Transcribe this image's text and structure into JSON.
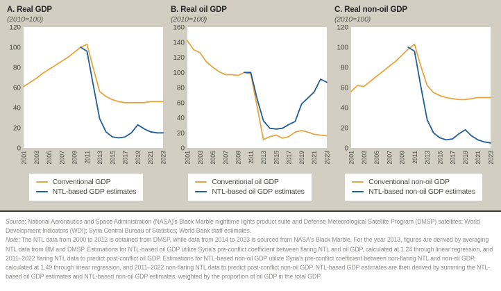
{
  "figure": {
    "colors": {
      "conventional": "#e8a43e",
      "ntl": "#1f5c99",
      "background": "#d2cfc2",
      "plot_bg": "#ffffff",
      "rule": "#3c3c34"
    },
    "panels": [
      {
        "title": "A. Real GDP",
        "subtitle": "(2010=100)",
        "legend": [
          {
            "label": "Conventional GDP",
            "color_key": "conventional"
          },
          {
            "label": "NTL-based GDP estimates",
            "color_key": "ntl"
          }
        ]
      },
      {
        "title": "B. Real oil GDP",
        "subtitle": "(2010=100)",
        "legend": [
          {
            "label": "Conventional oil GDP",
            "color_key": "conventional"
          },
          {
            "label": "NTL-based oil GDP estimates",
            "color_key": "ntl"
          }
        ]
      },
      {
        "title": "C. Real non-oil GDP",
        "subtitle": "(2010=100)",
        "legend": [
          {
            "label": "Conventional non-oil GDP",
            "color_key": "conventional"
          },
          {
            "label": "NTL-based non-oil GDP estimates",
            "color_key": "ntl"
          }
        ]
      }
    ]
  },
  "chart_data": [
    {
      "type": "line",
      "title": "A. Real GDP",
      "subtitle": "(2010=100)",
      "x_range": [
        2001,
        2023
      ],
      "x_ticks": [
        "2001",
        "2003",
        "2005",
        "2007",
        "2009",
        "2011",
        "2013",
        "2015",
        "2017",
        "2019",
        "2021",
        "2023"
      ],
      "ylim": [
        0,
        120
      ],
      "ytick_step": 20,
      "grid": false,
      "legend_position": "below",
      "series": [
        {
          "name": "Conventional GDP",
          "color_key": "conventional",
          "start_year": 2001,
          "values": [
            61,
            65,
            69,
            74,
            78,
            82,
            86,
            90,
            95,
            100,
            103,
            79,
            56,
            51,
            48,
            46,
            45,
            45,
            45,
            45,
            46,
            46,
            46
          ]
        },
        {
          "name": "NTL-based GDP estimates",
          "color_key": "ntl",
          "start_year": 2010,
          "values": [
            100,
            96,
            62,
            29,
            16,
            11,
            10,
            11,
            15,
            23,
            19,
            16,
            15,
            15
          ]
        }
      ]
    },
    {
      "type": "line",
      "title": "B. Real oil GDP",
      "subtitle": "(2010=100)",
      "x_range": [
        2001,
        2023
      ],
      "x_ticks": [
        "2001",
        "2003",
        "2005",
        "2007",
        "2009",
        "2011",
        "2013",
        "2015",
        "2017",
        "2019",
        "2021",
        "2023"
      ],
      "ylim": [
        0,
        160
      ],
      "ytick_step": 20,
      "grid": false,
      "legend_position": "below",
      "series": [
        {
          "name": "Conventional oil GDP",
          "color_key": "conventional",
          "start_year": 2001,
          "values": [
            142,
            130,
            126,
            114,
            107,
            101,
            97,
            97,
            96,
            100,
            98,
            55,
            11,
            15,
            17,
            13,
            15,
            21,
            23,
            21,
            18,
            17,
            16
          ]
        },
        {
          "name": "NTL-based oil GDP estimates",
          "color_key": "ntl",
          "start_year": 2010,
          "values": [
            100,
            100,
            65,
            36,
            26,
            25,
            26,
            31,
            35,
            58,
            66,
            74,
            91,
            87
          ]
        }
      ]
    },
    {
      "type": "line",
      "title": "C. Real non-oil GDP",
      "subtitle": "(2010=100)",
      "x_range": [
        2001,
        2023
      ],
      "x_ticks": [
        "2001",
        "2003",
        "2005",
        "2007",
        "2009",
        "2011",
        "2013",
        "2015",
        "2017",
        "2019",
        "2021",
        "2023"
      ],
      "ylim": [
        0,
        120
      ],
      "ytick_step": 20,
      "grid": false,
      "legend_position": "below",
      "series": [
        {
          "name": "Conventional non-oil GDP",
          "color_key": "conventional",
          "start_year": 2001,
          "values": [
            56,
            62,
            61,
            66,
            71,
            76,
            81,
            86,
            92,
            98,
            103,
            81,
            62,
            55,
            52,
            50,
            49,
            48,
            48,
            49,
            50,
            50,
            50
          ]
        },
        {
          "name": "NTL-based non-oil GDP estimates",
          "color_key": "ntl",
          "start_year": 2010,
          "values": [
            100,
            96,
            61,
            28,
            15,
            10,
            8,
            9,
            14,
            18,
            12,
            8,
            6,
            5
          ]
        }
      ]
    }
  ],
  "footer": {
    "source_label": "Source",
    "source_text": ": National Aeronautics and Space Administration (NASA)'s Black Marble nighttime lights product suite and Defense Meteorological Satellite Program (DMSP) satellites; World Development Indicators (WDI); Syria Central Bureau of Statistics; World Bank staff estimates.",
    "note_label": "Note",
    "note_text": ": The NTL data from 2000 to 2012 is obtained from DMSP, while data from 2014 to 2023 is sourced from NASA's Black Marble. For the year 2013, figures are derived by averaging NTL data from BM and DMSP. Estimations for NTL-based oil GDP utilize Syria's pre-conflict coefficient between flaring NTL and oil GDP, calculated at 1.24 through linear regression, and 2011–2022 flaring NTL data to predict post-conflict oil GDP. Estimations for NTL-based non-oil GDP utilize Syria's pre-conflict coefficient between non-flaring NTL and non-oil GDP, calculated at 1.49 through linear regression, and 2011–2022 non-flaring NTL data to predict post-conflict non-oil GDP. NTL-based GDP estimates are then derived by summing the NTL-based oil GDP estimates and NTL-based non-oil GDP estimates, weighted by the proportion of oil GDP in the total GDP."
  }
}
